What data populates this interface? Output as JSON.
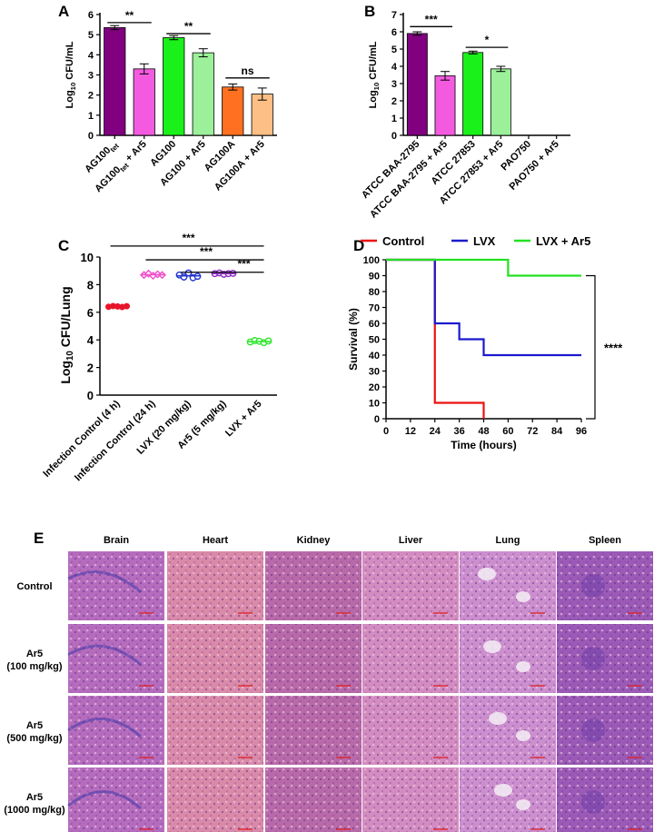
{
  "panel_letters": {
    "a": "A",
    "b": "B",
    "c": "C",
    "d": "D",
    "e": "E"
  },
  "chart_data": [
    {
      "id": "A",
      "type": "bar",
      "ylabel": "Log10 CFU/mL",
      "ylabel_main": "Log",
      "ylabel_sub": "10",
      "ylabel_rest": " CFU/mL",
      "ylim": [
        0,
        6
      ],
      "yticks": [
        "0",
        "1",
        "2",
        "3",
        "4",
        "5",
        "6"
      ],
      "categories": [
        "AG100tet",
        "AG100tet + Ar5",
        "AG100",
        "AG100 + Ar5",
        "AG100A",
        "AG100A + Ar5"
      ],
      "category_parts": [
        [
          "AG100",
          "tet",
          ""
        ],
        [
          "AG100",
          "tet",
          " + Ar5"
        ],
        [
          "AG100",
          "",
          ""
        ],
        [
          "AG100 + Ar5",
          "",
          ""
        ],
        [
          "AG100A",
          "",
          ""
        ],
        [
          "AG100A + Ar5",
          "",
          ""
        ]
      ],
      "values": [
        5.35,
        3.3,
        4.85,
        4.1,
        2.4,
        2.05
      ],
      "errors": [
        0.1,
        0.25,
        0.1,
        0.2,
        0.15,
        0.3
      ],
      "colors": [
        "#800080",
        "#f45ae0",
        "#1af01a",
        "#9cf09a",
        "#ff7020",
        "#fdbf85"
      ],
      "significance": [
        {
          "from": 0,
          "to": 1,
          "label": "**",
          "y": 5.6
        },
        {
          "from": 2,
          "to": 3,
          "label": "**",
          "y": 5.05
        },
        {
          "from": 4,
          "to": 5,
          "label": "ns",
          "y": 2.85
        }
      ]
    },
    {
      "id": "B",
      "type": "bar",
      "ylabel": "Log10 CFU/mL",
      "ylabel_main": "Log",
      "ylabel_sub": "10",
      "ylabel_rest": " CFU/mL",
      "ylim": [
        0,
        7
      ],
      "yticks": [
        "0",
        "1",
        "2",
        "3",
        "4",
        "5",
        "6",
        "7"
      ],
      "categories": [
        "ATCC BAA-2795",
        "ATCC BAA-2795 + Ar5",
        "ATCC 27853",
        "ATCC 27853 + Ar5",
        "PAO750",
        "PAO750 + Ar5"
      ],
      "values": [
        5.9,
        3.45,
        4.8,
        3.85,
        0,
        0
      ],
      "errors": [
        0.1,
        0.25,
        0.08,
        0.15,
        0,
        0
      ],
      "colors": [
        "#800080",
        "#f45ae0",
        "#1af01a",
        "#9cf09a",
        "#ff7020",
        "#fdbf85"
      ],
      "significance": [
        {
          "from": 0,
          "to": 1,
          "label": "***",
          "y": 6.3
        },
        {
          "from": 2,
          "to": 3,
          "label": "*",
          "y": 5.1
        }
      ]
    },
    {
      "id": "C",
      "type": "scatter",
      "ylabel": "Log10 CFU/Lung",
      "ylabel_main": "Log",
      "ylabel_sub": "10",
      "ylabel_rest": " CFU/Lung",
      "ylim": [
        0,
        10
      ],
      "yticks": [
        "0",
        "2",
        "4",
        "6",
        "8",
        "10"
      ],
      "categories": [
        "Infection Control (4 h)",
        "Infection Control (24 h)",
        "LVX (20 mg/kg)",
        "Ar5 (5 mg/kg)",
        "LVX + Ar5"
      ],
      "points": [
        [
          6.4,
          6.45,
          6.42,
          6.38,
          6.44
        ],
        [
          8.7,
          8.8,
          8.65,
          8.75,
          8.7
        ],
        [
          8.7,
          8.55,
          8.85,
          8.5,
          8.6
        ],
        [
          8.8,
          8.85,
          8.75,
          8.8,
          8.82
        ],
        [
          3.85,
          3.95,
          3.9,
          3.8,
          3.92
        ]
      ],
      "means": [
        6.42,
        8.72,
        8.64,
        8.8,
        3.88
      ],
      "colors": [
        "#e8152a",
        "#f04ec8",
        "#2233cc",
        "#8a2bc2",
        "#2ee62e"
      ],
      "markers": [
        "circle",
        "diamond",
        "circle-open",
        "circle-open",
        "circle-open"
      ],
      "significance": [
        {
          "from": 0,
          "to": 4,
          "label": "***",
          "y": 10.8
        },
        {
          "from": 1,
          "to": 4,
          "label": "***",
          "y": 9.8
        },
        {
          "from": 2,
          "to": 4,
          "label": "***",
          "y": 8.9
        }
      ]
    },
    {
      "id": "D",
      "type": "line",
      "xlabel": "Time (hours)",
      "ylabel": "Survival (%)",
      "xlim": [
        0,
        96
      ],
      "ylim": [
        0,
        100
      ],
      "xticks": [
        "0",
        "12",
        "24",
        "36",
        "48",
        "60",
        "72",
        "84",
        "96"
      ],
      "yticks": [
        "0",
        "10",
        "20",
        "30",
        "40",
        "50",
        "60",
        "70",
        "80",
        "90",
        "100"
      ],
      "series": [
        {
          "name": "Control",
          "color": "#ee1111",
          "steps": [
            [
              0,
              100
            ],
            [
              24,
              100
            ],
            [
              24,
              10
            ],
            [
              48,
              10
            ],
            [
              48,
              0
            ]
          ]
        },
        {
          "name": "LVX",
          "color": "#1a1acc",
          "steps": [
            [
              0,
              100
            ],
            [
              24,
              100
            ],
            [
              24,
              60
            ],
            [
              36,
              60
            ],
            [
              36,
              50
            ],
            [
              48,
              50
            ],
            [
              48,
              40
            ],
            [
              96,
              40
            ]
          ]
        },
        {
          "name": "LVX + Ar5",
          "color": "#22e022",
          "steps": [
            [
              0,
              100
            ],
            [
              60,
              100
            ],
            [
              60,
              90
            ],
            [
              96,
              90
            ]
          ]
        }
      ],
      "significance": "****"
    }
  ],
  "histology": {
    "columns": [
      "Brain",
      "Heart",
      "Kidney",
      "Liver",
      "Lung",
      "Spleen"
    ],
    "rows": [
      {
        "label_line1": "Control",
        "label_line2": ""
      },
      {
        "label_line1": "Ar5",
        "label_line2": "(100 mg/kg)"
      },
      {
        "label_line1": "Ar5",
        "label_line2": "(500 mg/kg)"
      },
      {
        "label_line1": "Ar5",
        "label_line2": "(1000 mg/kg)"
      }
    ],
    "tissue_colors": [
      "#b56cbd",
      "#d98aa8",
      "#b86aa8",
      "#d38cc0",
      "#cc8fce",
      "#9a5ab5"
    ]
  }
}
